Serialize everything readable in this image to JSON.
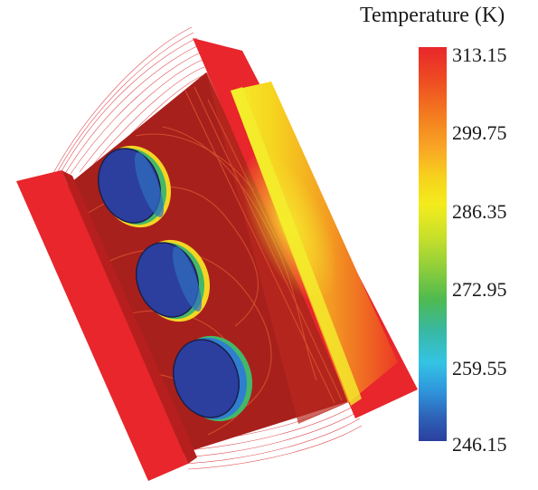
{
  "legend": {
    "title": "Temperature (K)",
    "ticks": [
      "313.15",
      "299.75",
      "286.35",
      "272.95",
      "259.55",
      "246.15"
    ],
    "colors": [
      "#e8262b",
      "#f3ec1d",
      "#4fba50",
      "#34c4e4",
      "#2c3f9e"
    ]
  }
}
